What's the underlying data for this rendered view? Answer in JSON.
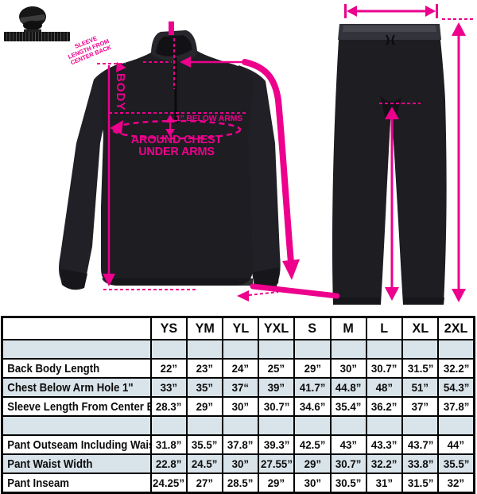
{
  "colors": {
    "accent": "#ec008c",
    "garment_dark": "#1d1d22",
    "table_shade": "#d9e3ea",
    "table_border": "#000000"
  },
  "figure": {
    "brand": {
      "icon": "mascot-logo-icon"
    },
    "jacket_annotations": {
      "sleeve_note_line1": "SLEEVE",
      "sleeve_note_line2": "LENGTH FROM",
      "sleeve_note_line3": "CENTER BACK",
      "body_label": "BODY",
      "below_arms_label": "1” BELOW ARMS",
      "chest_label_line1": "AROUND CHEST",
      "chest_label_line2": "UNDER ARMS"
    }
  },
  "chart_data": {
    "type": "table",
    "columns": [
      "YS",
      "YM",
      "YL",
      "YXL",
      "S",
      "M",
      "L",
      "XL",
      "2XL"
    ],
    "rows": [
      {
        "spacer": true
      },
      {
        "label": "Back Body Length",
        "values": [
          "22”",
          "23”",
          "24”",
          "25”",
          "29”",
          "30”",
          "30.7”",
          "31.5”",
          "32.2”"
        ]
      },
      {
        "label": "Chest Below Arm Hole 1\"",
        "values": [
          "33”",
          "35”",
          "37“",
          "39”",
          "41.7”",
          "44.8”",
          "48”",
          "51”",
          "54.3”"
        ]
      },
      {
        "label": "Sleeve Length From Center Back",
        "values": [
          "28.3”",
          "29”",
          "30”",
          "30.7”",
          "34.6”",
          "35.4”",
          "36.2”",
          "37”",
          "37.8”"
        ]
      },
      {
        "spacer": true
      },
      {
        "label": "Pant Outseam Including Waist",
        "values": [
          "31.8”",
          "35.5”",
          "37.8”",
          "39.3”",
          "42.5”",
          "43”",
          "43.3”",
          "43.7”",
          "44”"
        ]
      },
      {
        "label": "Pant Waist Width",
        "values": [
          "22.8”",
          "24.5”",
          "30”",
          "27.55”",
          "29”",
          "30.7”",
          "32.2”",
          "33.8”",
          "35.5”"
        ]
      },
      {
        "label": "Pant Inseam",
        "values": [
          "24.25”",
          "27”",
          "28.5”",
          "29”",
          "30”",
          "30.5”",
          "31”",
          "31.5”",
          "32”"
        ]
      }
    ]
  }
}
